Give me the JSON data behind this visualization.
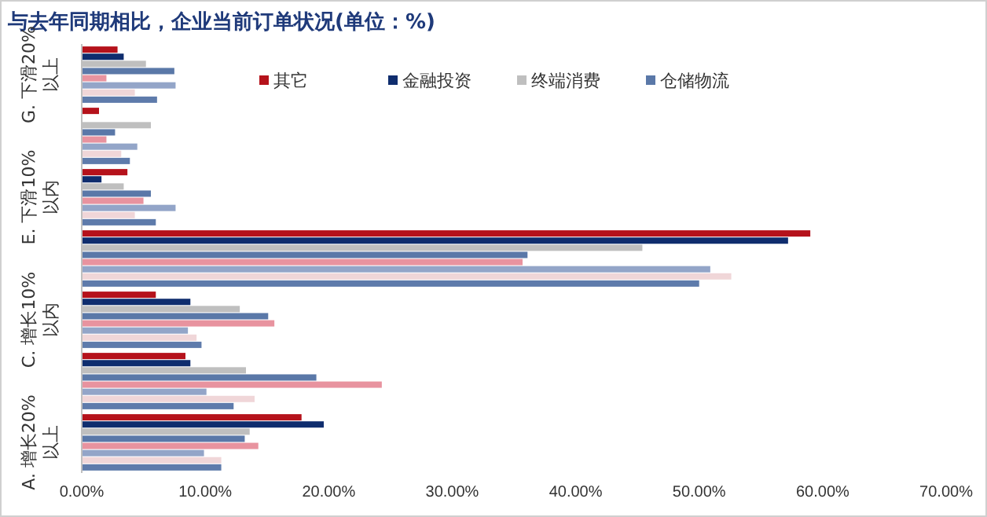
{
  "chart_data": {
    "type": "bar",
    "orientation": "horizontal",
    "title": "与去年同期相比，企业当前订单状况(单位：%)",
    "categories": [
      "G. 下滑20%以上",
      null,
      "E. 下滑10%以内",
      null,
      "C. 增长10%以内",
      null,
      "A. 增长20%以上"
    ],
    "series": [
      {
        "name": "其它",
        "color": "#b5121b",
        "values": [
          2.9,
          1.4,
          3.7,
          59.0,
          6.0,
          8.4,
          17.8
        ]
      },
      {
        "name": "金融投资",
        "color": "#0f2d6e",
        "values": [
          3.4,
          0,
          1.6,
          57.2,
          8.8,
          8.8,
          19.6
        ]
      },
      {
        "name": "终端消费",
        "color": "#bfbfbf",
        "values": [
          5.2,
          5.6,
          3.4,
          45.4,
          12.8,
          13.3,
          13.6
        ]
      },
      {
        "name": "仓储物流",
        "color": "#5a78a8",
        "values": [
          7.5,
          2.7,
          5.6,
          36.1,
          15.1,
          19.0,
          13.2
        ]
      },
      {
        "color": "#e8939f",
        "values": [
          2.0,
          2.0,
          5.0,
          35.7,
          15.6,
          24.3,
          14.3
        ]
      },
      {
        "color": "#93a5c8",
        "values": [
          7.6,
          4.5,
          7.6,
          50.9,
          8.6,
          10.1,
          9.9
        ]
      },
      {
        "color": "#f0d6d8",
        "values": [
          4.3,
          3.2,
          4.3,
          52.6,
          9.3,
          14.0,
          11.3
        ]
      },
      {
        "color": "#5e7bab",
        "values": [
          6.1,
          3.9,
          6.0,
          50.0,
          9.7,
          12.3,
          11.3
        ]
      }
    ],
    "xlim": [
      0,
      70
    ],
    "xticks": [
      {
        "value": 0,
        "label": "0.00%"
      },
      {
        "value": 10,
        "label": "10.00%"
      },
      {
        "value": 20,
        "label": "20.00%"
      },
      {
        "value": 30,
        "label": "30.00%"
      },
      {
        "value": 40,
        "label": "40.00%"
      },
      {
        "value": 50,
        "label": "50.00%"
      },
      {
        "value": 60,
        "label": "60.00%"
      },
      {
        "value": 70,
        "label": "70.00%"
      }
    ],
    "legend": "top right",
    "grid": false
  }
}
